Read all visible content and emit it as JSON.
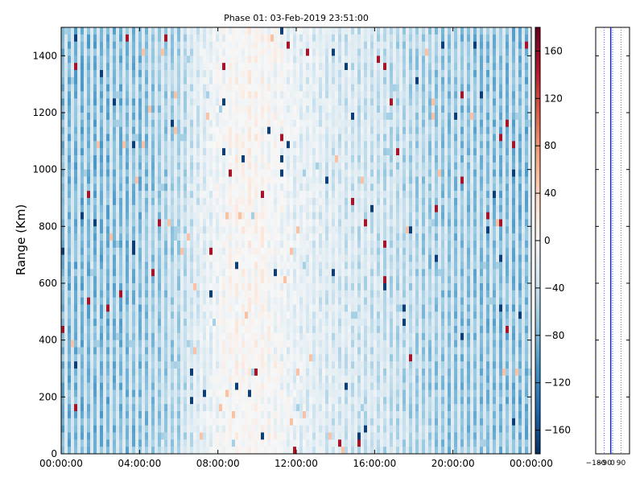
{
  "chart_data": {
    "type": "heatmap",
    "title": "Phase 01: 03-Feb-2019 23:51:00",
    "ylabel": "Range (Km)",
    "xlabel": "",
    "x_ticks": [
      "00:00:00",
      "04:00:00",
      "08:00:00",
      "12:00:00",
      "16:00:00",
      "20:00:00",
      "00:00:00"
    ],
    "x_range_hours": [
      0,
      24
    ],
    "y_ticks": [
      0,
      200,
      400,
      600,
      800,
      1000,
      1200,
      1400
    ],
    "y_range": [
      0,
      1500
    ],
    "colorbar": {
      "colormap": "RdBu_r",
      "range": [
        -180,
        180
      ],
      "ticks": [
        -160,
        -120,
        -80,
        -40,
        0,
        40,
        80,
        120,
        160
      ],
      "tick_labels": [
        "−160",
        "−120",
        "−80",
        "−40",
        "0",
        "40",
        "80",
        "120",
        "160"
      ]
    },
    "typical_value_by_hour": [
      {
        "hour": 0,
        "value": -85
      },
      {
        "hour": 2,
        "value": -85
      },
      {
        "hour": 4,
        "value": -80
      },
      {
        "hour": 6,
        "value": -60
      },
      {
        "hour": 7,
        "value": -30
      },
      {
        "hour": 8,
        "value": -10
      },
      {
        "hour": 9,
        "value": 5
      },
      {
        "hour": 10,
        "value": 5
      },
      {
        "hour": 11,
        "value": -5
      },
      {
        "hour": 12,
        "value": -20
      },
      {
        "hour": 14,
        "value": -35
      },
      {
        "hour": 16,
        "value": -45
      },
      {
        "hour": 18,
        "value": -60
      },
      {
        "hour": 20,
        "value": -75
      },
      {
        "hour": 22,
        "value": -80
      },
      {
        "hour": 24,
        "value": -85
      }
    ],
    "side_panel": {
      "x_tick_labels": [
        "−180",
        "−90",
        "0",
        "90"
      ],
      "x_range": [
        -180,
        180
      ],
      "y_range": [
        0,
        1500
      ],
      "vertical_dotted_lines": [
        -90,
        0,
        90
      ],
      "solid_line_value": -20
    }
  }
}
